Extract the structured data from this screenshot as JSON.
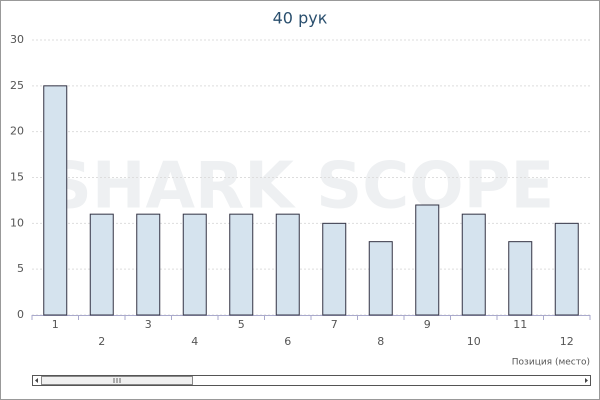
{
  "chart_data": {
    "type": "bar",
    "title": "40 рук",
    "watermark": "SHARK SCOPE",
    "x_label": "Позиция (место)",
    "categories": [
      "1",
      "2",
      "3",
      "4",
      "5",
      "6",
      "7",
      "8",
      "9",
      "10",
      "11",
      "12"
    ],
    "values": [
      25,
      11,
      11,
      11,
      11,
      11,
      10,
      8,
      12,
      11,
      8,
      10
    ],
    "color": "#d5e3ee",
    "ylim": [
      0,
      30
    ],
    "yticks": [
      0,
      5,
      10,
      15,
      20,
      25,
      30
    ],
    "grid": true
  }
}
